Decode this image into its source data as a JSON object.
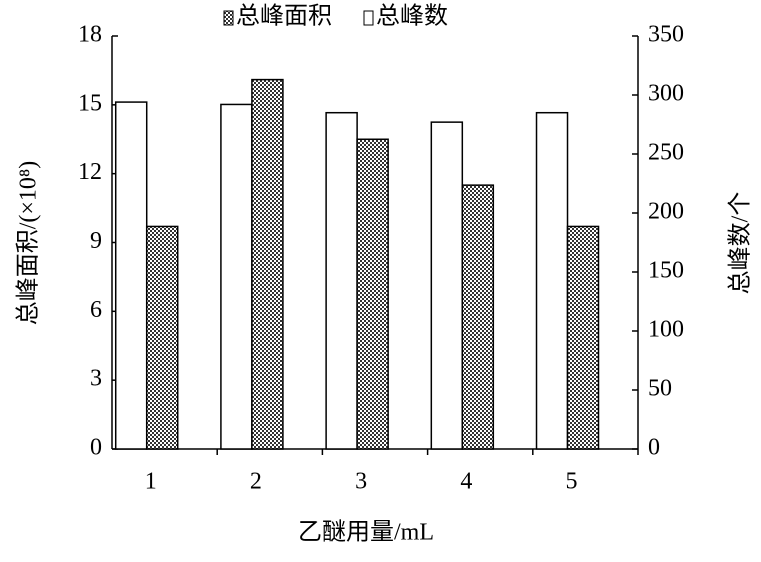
{
  "chart_data": {
    "type": "bar",
    "categories": [
      "1",
      "2",
      "3",
      "4",
      "5"
    ],
    "xlabel": "乙醚用量/mL",
    "ylabel": "总峰面积/(×10⁸)",
    "y2label": "总峰数/个",
    "series": [
      {
        "name": "总峰数",
        "color": "#ffffff",
        "axis": "y2",
        "values": [
          294,
          292,
          285,
          277,
          285
        ]
      },
      {
        "name": "总峰面积",
        "color": "#333333",
        "pattern": "checker",
        "values": [
          9.7,
          16.1,
          13.5,
          11.5,
          9.7
        ]
      }
    ],
    "ylim": [
      0,
      18
    ],
    "yticks": [
      0,
      3,
      6,
      9,
      12,
      15,
      18
    ],
    "y2lim": [
      0,
      350
    ],
    "y2ticks": [
      0,
      50,
      100,
      150,
      200,
      250,
      300,
      350
    ],
    "legend": "top"
  }
}
